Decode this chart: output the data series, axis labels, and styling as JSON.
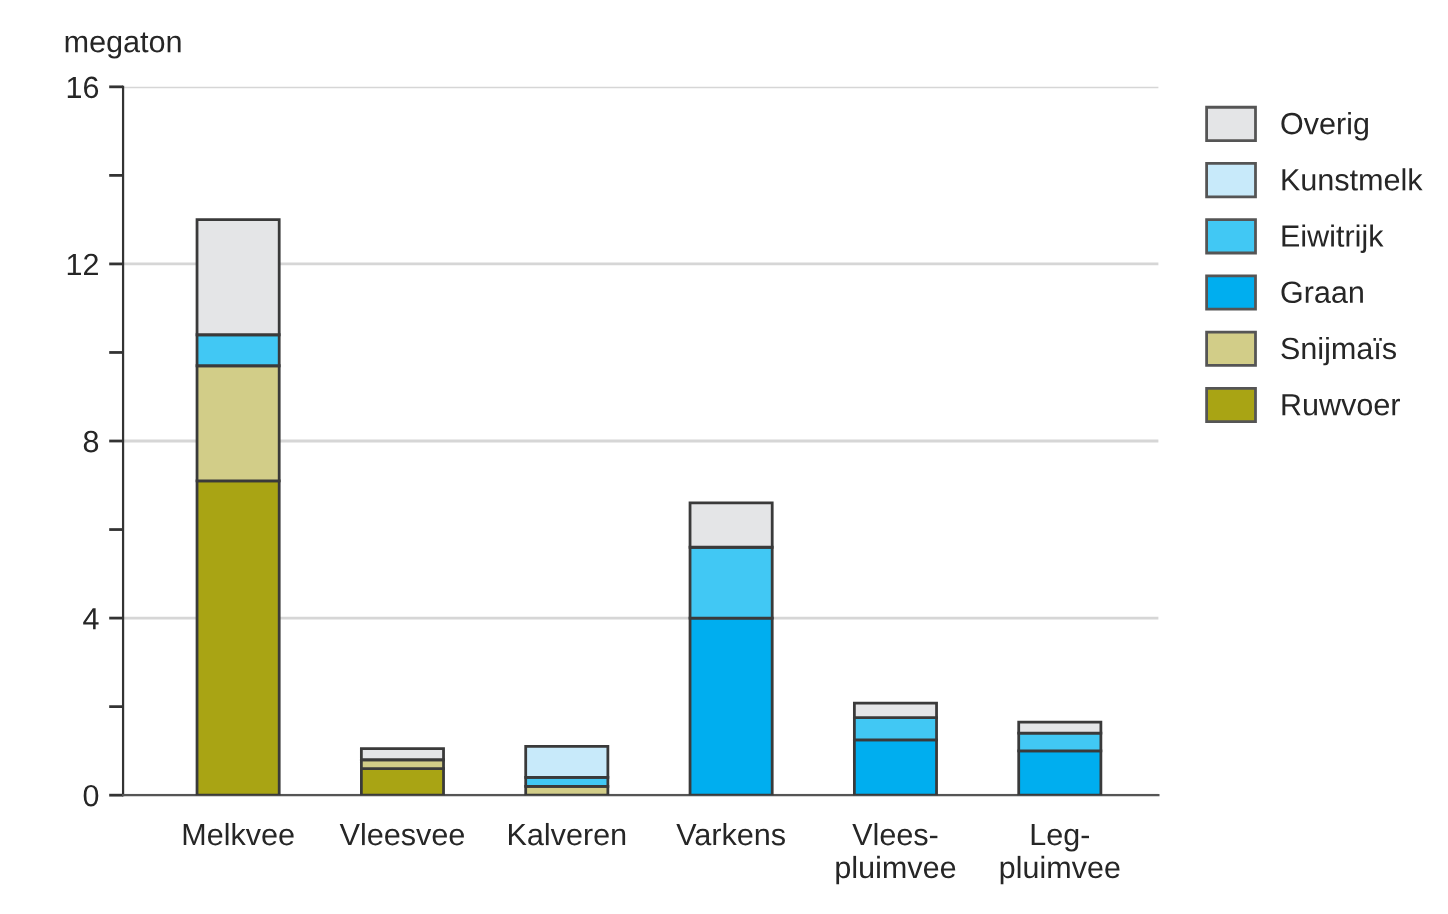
{
  "chart_data": {
    "type": "bar",
    "stacked": true,
    "ylabel": "megaton",
    "categories": [
      "Melkvee",
      "Vleesvee",
      "Kalveren",
      "Varkens",
      "Vlees-\npluimvee",
      "Leg-\npluimvee"
    ],
    "series": [
      {
        "name": "Ruwvoer",
        "color": "#a9a414",
        "values": [
          7.1,
          0.6,
          null,
          null,
          null,
          null
        ]
      },
      {
        "name": "Snijmaïs",
        "color": "#d2cd88",
        "values": [
          2.6,
          0.2,
          0.2,
          null,
          null,
          null
        ]
      },
      {
        "name": "Graan",
        "color": "#00aeef",
        "values": [
          null,
          null,
          null,
          4.0,
          1.25,
          1.0
        ]
      },
      {
        "name": "Eiwitrijk",
        "color": "#41c8f4",
        "values": [
          0.7,
          null,
          0.2,
          1.6,
          0.5,
          0.4
        ]
      },
      {
        "name": "Kunstmelk",
        "color": "#c8eafa",
        "values": [
          null,
          null,
          0.7,
          null,
          null,
          null
        ]
      },
      {
        "name": "Overig",
        "color": "#e4e5e7",
        "values": [
          2.6,
          0.25,
          null,
          1.0,
          0.33,
          0.25
        ]
      }
    ],
    "ylim": [
      0,
      16
    ],
    "yticks": [
      0,
      {
        "value": 2,
        "label": null
      },
      4,
      {
        "value": 6,
        "label": null
      },
      8,
      {
        "value": 10,
        "label": null
      },
      12,
      {
        "value": 14,
        "label": null
      },
      16
    ],
    "grid": "y",
    "legend": "top right"
  }
}
